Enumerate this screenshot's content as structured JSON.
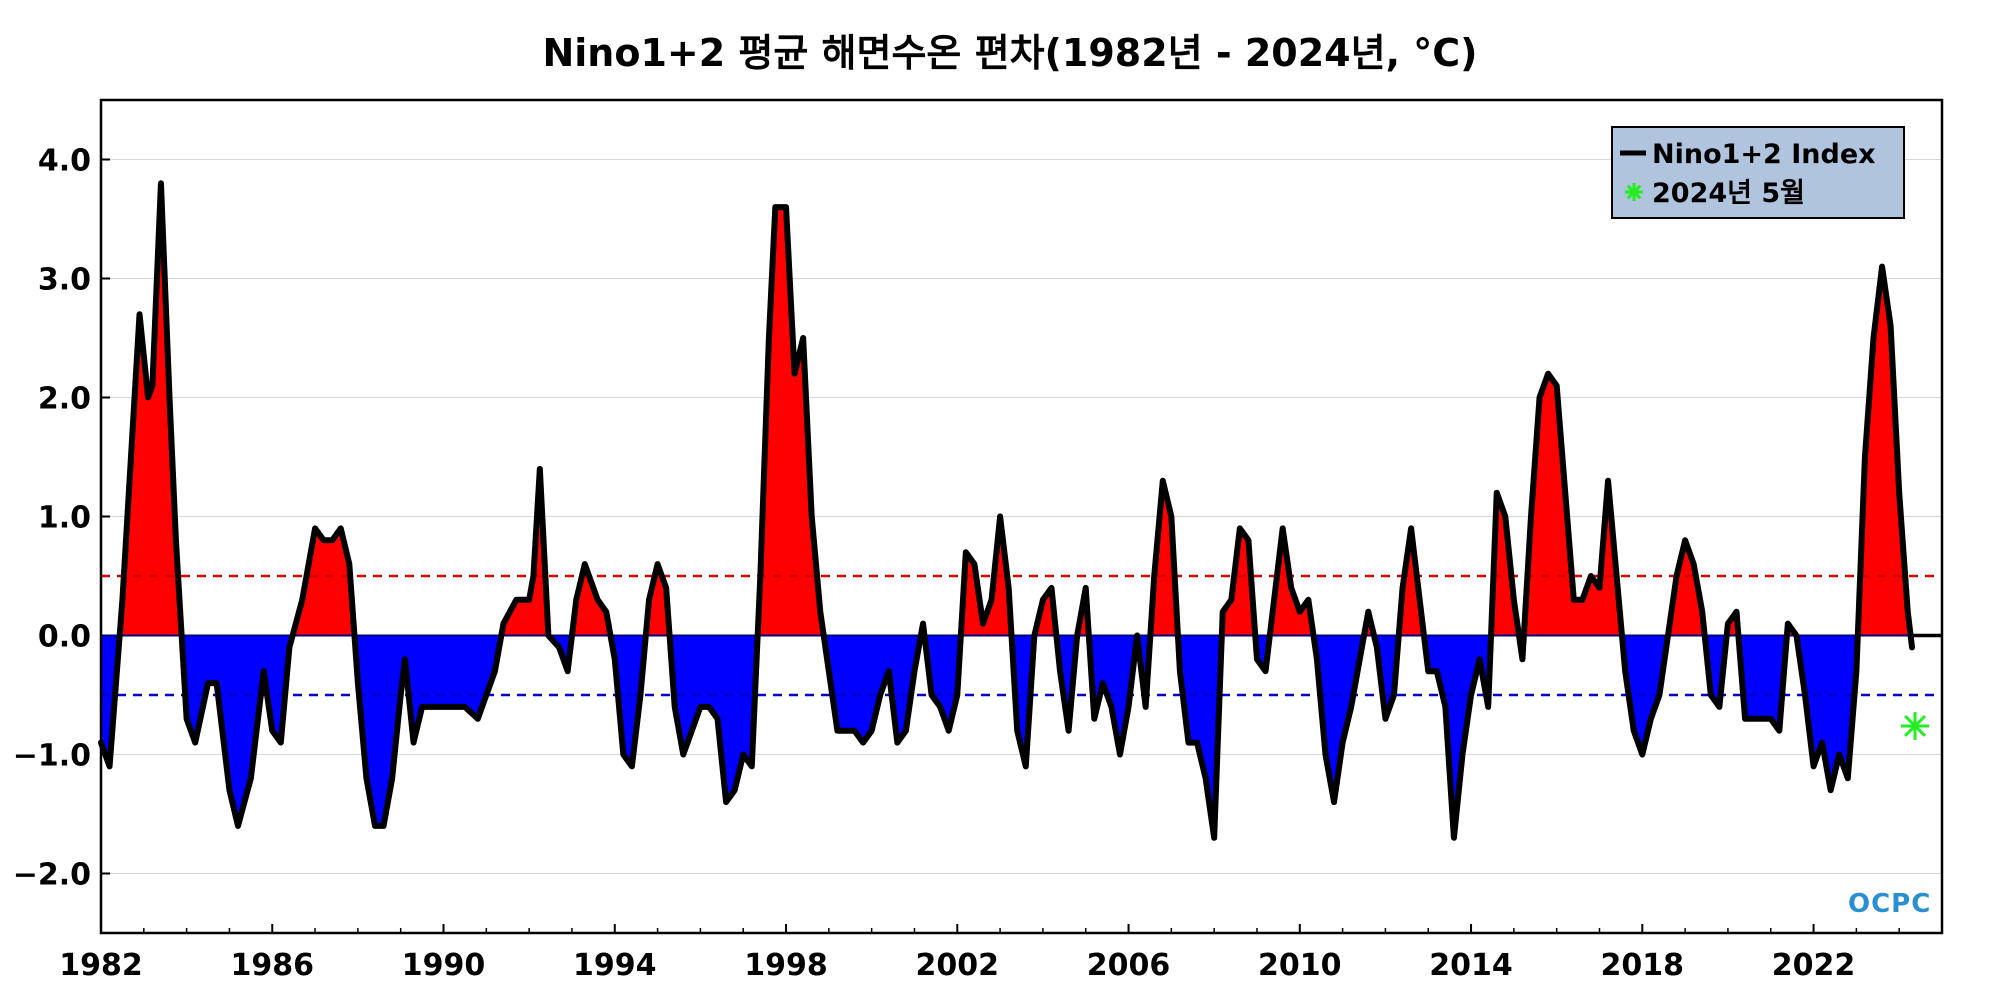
{
  "chart_data": {
    "type": "area",
    "title": "Nino1+2 평균 해면수온 편차(1982년 - 2024년, °C)",
    "xlabel": "",
    "ylabel": "",
    "xlim": [
      1982.0,
      2025.0
    ],
    "ylim": [
      -2.5,
      4.5
    ],
    "x_ticks": [
      1982,
      1986,
      1990,
      1994,
      1998,
      2002,
      2006,
      2010,
      2014,
      2018,
      2022
    ],
    "x_tick_labels": [
      "1982",
      "1986",
      "1990",
      "1994",
      "1998",
      "2002",
      "2006",
      "2010",
      "2014",
      "2018",
      "2022"
    ],
    "y_ticks": [
      4.0,
      3.0,
      2.0,
      1.0,
      0.0,
      -1.0,
      -2.0
    ],
    "y_tick_labels": [
      "4.0",
      "3.0",
      "2.0",
      "1.0",
      "0.0",
      "−1.0",
      "−2.0"
    ],
    "grid": true,
    "thresholds": [
      {
        "value": 0.5,
        "color": "#d40000",
        "style": "dashed"
      },
      {
        "value": -0.5,
        "color": "#0000cc",
        "style": "dashed"
      }
    ],
    "fill_colors": {
      "positive": "#ff0000",
      "negative": "#0000ff"
    },
    "legend": {
      "placement": "top-right",
      "background": "#b0c4de",
      "entries": [
        {
          "label": "Nino1+2 Index",
          "marker": "line",
          "color": "#000000"
        },
        {
          "label": "2024년 5월",
          "marker": "star",
          "color": "#22ee22"
        }
      ]
    },
    "series": [
      {
        "name": "Nino1+2 Index",
        "color": "#000000",
        "points": [
          [
            1982.0,
            -0.9
          ],
          [
            1982.2,
            -1.1
          ],
          [
            1982.5,
            0.3
          ],
          [
            1982.75,
            1.8
          ],
          [
            1982.9,
            2.7
          ],
          [
            1983.1,
            2.0
          ],
          [
            1983.2,
            2.1
          ],
          [
            1983.4,
            3.8
          ],
          [
            1983.6,
            2.0
          ],
          [
            1983.75,
            0.8
          ],
          [
            1984.0,
            -0.7
          ],
          [
            1984.2,
            -0.9
          ],
          [
            1984.5,
            -0.4
          ],
          [
            1984.7,
            -0.4
          ],
          [
            1985.0,
            -1.3
          ],
          [
            1985.2,
            -1.6
          ],
          [
            1985.5,
            -1.2
          ],
          [
            1985.8,
            -0.3
          ],
          [
            1986.0,
            -0.8
          ],
          [
            1986.2,
            -0.9
          ],
          [
            1986.4,
            -0.1
          ],
          [
            1986.7,
            0.3
          ],
          [
            1987.0,
            0.9
          ],
          [
            1987.2,
            0.8
          ],
          [
            1987.4,
            0.8
          ],
          [
            1987.6,
            0.9
          ],
          [
            1987.8,
            0.6
          ],
          [
            1988.0,
            -0.4
          ],
          [
            1988.2,
            -1.2
          ],
          [
            1988.4,
            -1.6
          ],
          [
            1988.6,
            -1.6
          ],
          [
            1988.8,
            -1.2
          ],
          [
            1989.0,
            -0.5
          ],
          [
            1989.1,
            -0.2
          ],
          [
            1989.3,
            -0.9
          ],
          [
            1989.5,
            -0.6
          ],
          [
            1989.8,
            -0.6
          ],
          [
            1990.0,
            -0.6
          ],
          [
            1990.3,
            -0.6
          ],
          [
            1990.5,
            -0.6
          ],
          [
            1990.8,
            -0.7
          ],
          [
            1991.0,
            -0.5
          ],
          [
            1991.2,
            -0.3
          ],
          [
            1991.4,
            0.1
          ],
          [
            1991.7,
            0.3
          ],
          [
            1992.0,
            0.3
          ],
          [
            1992.1,
            0.5
          ],
          [
            1992.25,
            1.4
          ],
          [
            1992.45,
            0.0
          ],
          [
            1992.7,
            -0.1
          ],
          [
            1992.9,
            -0.3
          ],
          [
            1993.1,
            0.3
          ],
          [
            1993.3,
            0.6
          ],
          [
            1993.6,
            0.3
          ],
          [
            1993.8,
            0.2
          ],
          [
            1994.0,
            -0.2
          ],
          [
            1994.2,
            -1.0
          ],
          [
            1994.4,
            -1.1
          ],
          [
            1994.6,
            -0.5
          ],
          [
            1994.8,
            0.3
          ],
          [
            1995.0,
            0.6
          ],
          [
            1995.2,
            0.4
          ],
          [
            1995.4,
            -0.6
          ],
          [
            1995.6,
            -1.0
          ],
          [
            1995.8,
            -0.8
          ],
          [
            1996.0,
            -0.6
          ],
          [
            1996.2,
            -0.6
          ],
          [
            1996.4,
            -0.7
          ],
          [
            1996.6,
            -1.4
          ],
          [
            1996.8,
            -1.3
          ],
          [
            1997.0,
            -1.0
          ],
          [
            1997.2,
            -1.1
          ],
          [
            1997.4,
            0.5
          ],
          [
            1997.6,
            2.5
          ],
          [
            1997.75,
            3.6
          ],
          [
            1998.0,
            3.6
          ],
          [
            1998.2,
            2.2
          ],
          [
            1998.4,
            2.5
          ],
          [
            1998.6,
            1.0
          ],
          [
            1998.8,
            0.2
          ],
          [
            1999.0,
            -0.3
          ],
          [
            1999.2,
            -0.8
          ],
          [
            1999.4,
            -0.8
          ],
          [
            1999.6,
            -0.8
          ],
          [
            1999.8,
            -0.9
          ],
          [
            2000.0,
            -0.8
          ],
          [
            2000.2,
            -0.5
          ],
          [
            2000.4,
            -0.3
          ],
          [
            2000.6,
            -0.9
          ],
          [
            2000.8,
            -0.8
          ],
          [
            2001.0,
            -0.3
          ],
          [
            2001.2,
            0.1
          ],
          [
            2001.4,
            -0.5
          ],
          [
            2001.6,
            -0.6
          ],
          [
            2001.8,
            -0.8
          ],
          [
            2002.0,
            -0.5
          ],
          [
            2002.2,
            0.7
          ],
          [
            2002.4,
            0.6
          ],
          [
            2002.6,
            0.1
          ],
          [
            2002.8,
            0.3
          ],
          [
            2003.0,
            1.0
          ],
          [
            2003.2,
            0.4
          ],
          [
            2003.4,
            -0.8
          ],
          [
            2003.6,
            -1.1
          ],
          [
            2003.8,
            0.0
          ],
          [
            2004.0,
            0.3
          ],
          [
            2004.2,
            0.4
          ],
          [
            2004.4,
            -0.3
          ],
          [
            2004.6,
            -0.8
          ],
          [
            2004.8,
            0.0
          ],
          [
            2005.0,
            0.4
          ],
          [
            2005.2,
            -0.7
          ],
          [
            2005.4,
            -0.4
          ],
          [
            2005.6,
            -0.6
          ],
          [
            2005.8,
            -1.0
          ],
          [
            2006.0,
            -0.6
          ],
          [
            2006.2,
            0.0
          ],
          [
            2006.4,
            -0.6
          ],
          [
            2006.6,
            0.5
          ],
          [
            2006.8,
            1.3
          ],
          [
            2007.0,
            1.0
          ],
          [
            2007.2,
            -0.3
          ],
          [
            2007.4,
            -0.9
          ],
          [
            2007.6,
            -0.9
          ],
          [
            2007.8,
            -1.2
          ],
          [
            2008.0,
            -1.7
          ],
          [
            2008.2,
            0.2
          ],
          [
            2008.4,
            0.3
          ],
          [
            2008.6,
            0.9
          ],
          [
            2008.8,
            0.8
          ],
          [
            2009.0,
            -0.2
          ],
          [
            2009.2,
            -0.3
          ],
          [
            2009.4,
            0.3
          ],
          [
            2009.6,
            0.9
          ],
          [
            2009.8,
            0.4
          ],
          [
            2010.0,
            0.2
          ],
          [
            2010.2,
            0.3
          ],
          [
            2010.4,
            -0.2
          ],
          [
            2010.6,
            -1.0
          ],
          [
            2010.8,
            -1.4
          ],
          [
            2011.0,
            -0.9
          ],
          [
            2011.2,
            -0.6
          ],
          [
            2011.4,
            -0.2
          ],
          [
            2011.6,
            0.2
          ],
          [
            2011.8,
            -0.1
          ],
          [
            2012.0,
            -0.7
          ],
          [
            2012.2,
            -0.5
          ],
          [
            2012.4,
            0.4
          ],
          [
            2012.6,
            0.9
          ],
          [
            2012.8,
            0.3
          ],
          [
            2013.0,
            -0.3
          ],
          [
            2013.2,
            -0.3
          ],
          [
            2013.4,
            -0.6
          ],
          [
            2013.6,
            -1.7
          ],
          [
            2013.8,
            -1.0
          ],
          [
            2014.0,
            -0.5
          ],
          [
            2014.2,
            -0.2
          ],
          [
            2014.4,
            -0.6
          ],
          [
            2014.6,
            1.2
          ],
          [
            2014.8,
            1.0
          ],
          [
            2015.0,
            0.3
          ],
          [
            2015.2,
            -0.2
          ],
          [
            2015.4,
            1.0
          ],
          [
            2015.6,
            2.0
          ],
          [
            2015.8,
            2.2
          ],
          [
            2016.0,
            2.1
          ],
          [
            2016.2,
            1.2
          ],
          [
            2016.4,
            0.3
          ],
          [
            2016.6,
            0.3
          ],
          [
            2016.8,
            0.5
          ],
          [
            2017.0,
            0.4
          ],
          [
            2017.2,
            1.3
          ],
          [
            2017.4,
            0.5
          ],
          [
            2017.6,
            -0.3
          ],
          [
            2017.8,
            -0.8
          ],
          [
            2018.0,
            -1.0
          ],
          [
            2018.2,
            -0.7
          ],
          [
            2018.4,
            -0.5
          ],
          [
            2018.6,
            0.0
          ],
          [
            2018.8,
            0.5
          ],
          [
            2019.0,
            0.8
          ],
          [
            2019.2,
            0.6
          ],
          [
            2019.4,
            0.2
          ],
          [
            2019.6,
            -0.5
          ],
          [
            2019.8,
            -0.6
          ],
          [
            2020.0,
            0.1
          ],
          [
            2020.2,
            0.2
          ],
          [
            2020.4,
            -0.7
          ],
          [
            2020.6,
            -0.7
          ],
          [
            2020.8,
            -0.7
          ],
          [
            2021.0,
            -0.7
          ],
          [
            2021.2,
            -0.8
          ],
          [
            2021.4,
            0.1
          ],
          [
            2021.6,
            0.0
          ],
          [
            2021.8,
            -0.5
          ],
          [
            2022.0,
            -1.1
          ],
          [
            2022.2,
            -0.9
          ],
          [
            2022.4,
            -1.3
          ],
          [
            2022.6,
            -1.0
          ],
          [
            2022.8,
            -1.2
          ],
          [
            2023.0,
            -0.3
          ],
          [
            2023.2,
            1.5
          ],
          [
            2023.4,
            2.5
          ],
          [
            2023.6,
            3.1
          ],
          [
            2023.8,
            2.6
          ],
          [
            2024.0,
            1.2
          ],
          [
            2024.2,
            0.2
          ],
          [
            2024.3,
            -0.1
          ]
        ]
      }
    ],
    "highlight_point": {
      "label": "2024년 5월",
      "x": 2024.37,
      "y": -0.76,
      "color": "#22ee22"
    },
    "watermark": "OCPC"
  }
}
